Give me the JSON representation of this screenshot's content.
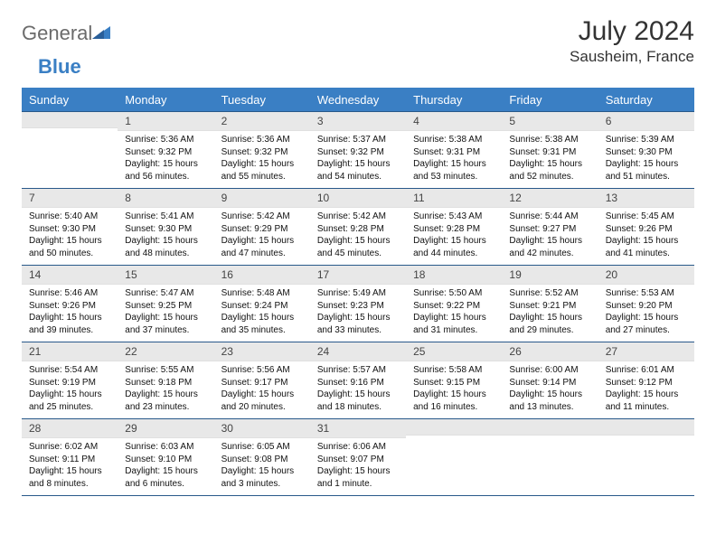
{
  "brand": {
    "word1": "General",
    "word2": "Blue"
  },
  "title": {
    "month": "July 2024",
    "location": "Sausheim, France"
  },
  "colors": {
    "header_bg": "#3a7fc4",
    "header_border": "#29598a",
    "daynum_bg": "#e8e8e8",
    "text": "#111111",
    "title_text": "#333333",
    "logo_gray": "#6b6b6b",
    "logo_blue": "#3a7fc4",
    "page_bg": "#ffffff"
  },
  "typography": {
    "month_fontsize": 30,
    "location_fontsize": 17,
    "dow_fontsize": 13,
    "daynum_fontsize": 12,
    "info_fontsize": 10,
    "logo_fontsize": 22
  },
  "dayNames": [
    "Sunday",
    "Monday",
    "Tuesday",
    "Wednesday",
    "Thursday",
    "Friday",
    "Saturday"
  ],
  "weeks": [
    [
      {
        "n": "",
        "sr": "",
        "ss": "",
        "dl": ""
      },
      {
        "n": "1",
        "sr": "5:36 AM",
        "ss": "9:32 PM",
        "dl": "15 hours and 56 minutes."
      },
      {
        "n": "2",
        "sr": "5:36 AM",
        "ss": "9:32 PM",
        "dl": "15 hours and 55 minutes."
      },
      {
        "n": "3",
        "sr": "5:37 AM",
        "ss": "9:32 PM",
        "dl": "15 hours and 54 minutes."
      },
      {
        "n": "4",
        "sr": "5:38 AM",
        "ss": "9:31 PM",
        "dl": "15 hours and 53 minutes."
      },
      {
        "n": "5",
        "sr": "5:38 AM",
        "ss": "9:31 PM",
        "dl": "15 hours and 52 minutes."
      },
      {
        "n": "6",
        "sr": "5:39 AM",
        "ss": "9:30 PM",
        "dl": "15 hours and 51 minutes."
      }
    ],
    [
      {
        "n": "7",
        "sr": "5:40 AM",
        "ss": "9:30 PM",
        "dl": "15 hours and 50 minutes."
      },
      {
        "n": "8",
        "sr": "5:41 AM",
        "ss": "9:30 PM",
        "dl": "15 hours and 48 minutes."
      },
      {
        "n": "9",
        "sr": "5:42 AM",
        "ss": "9:29 PM",
        "dl": "15 hours and 47 minutes."
      },
      {
        "n": "10",
        "sr": "5:42 AM",
        "ss": "9:28 PM",
        "dl": "15 hours and 45 minutes."
      },
      {
        "n": "11",
        "sr": "5:43 AM",
        "ss": "9:28 PM",
        "dl": "15 hours and 44 minutes."
      },
      {
        "n": "12",
        "sr": "5:44 AM",
        "ss": "9:27 PM",
        "dl": "15 hours and 42 minutes."
      },
      {
        "n": "13",
        "sr": "5:45 AM",
        "ss": "9:26 PM",
        "dl": "15 hours and 41 minutes."
      }
    ],
    [
      {
        "n": "14",
        "sr": "5:46 AM",
        "ss": "9:26 PM",
        "dl": "15 hours and 39 minutes."
      },
      {
        "n": "15",
        "sr": "5:47 AM",
        "ss": "9:25 PM",
        "dl": "15 hours and 37 minutes."
      },
      {
        "n": "16",
        "sr": "5:48 AM",
        "ss": "9:24 PM",
        "dl": "15 hours and 35 minutes."
      },
      {
        "n": "17",
        "sr": "5:49 AM",
        "ss": "9:23 PM",
        "dl": "15 hours and 33 minutes."
      },
      {
        "n": "18",
        "sr": "5:50 AM",
        "ss": "9:22 PM",
        "dl": "15 hours and 31 minutes."
      },
      {
        "n": "19",
        "sr": "5:52 AM",
        "ss": "9:21 PM",
        "dl": "15 hours and 29 minutes."
      },
      {
        "n": "20",
        "sr": "5:53 AM",
        "ss": "9:20 PM",
        "dl": "15 hours and 27 minutes."
      }
    ],
    [
      {
        "n": "21",
        "sr": "5:54 AM",
        "ss": "9:19 PM",
        "dl": "15 hours and 25 minutes."
      },
      {
        "n": "22",
        "sr": "5:55 AM",
        "ss": "9:18 PM",
        "dl": "15 hours and 23 minutes."
      },
      {
        "n": "23",
        "sr": "5:56 AM",
        "ss": "9:17 PM",
        "dl": "15 hours and 20 minutes."
      },
      {
        "n": "24",
        "sr": "5:57 AM",
        "ss": "9:16 PM",
        "dl": "15 hours and 18 minutes."
      },
      {
        "n": "25",
        "sr": "5:58 AM",
        "ss": "9:15 PM",
        "dl": "15 hours and 16 minutes."
      },
      {
        "n": "26",
        "sr": "6:00 AM",
        "ss": "9:14 PM",
        "dl": "15 hours and 13 minutes."
      },
      {
        "n": "27",
        "sr": "6:01 AM",
        "ss": "9:12 PM",
        "dl": "15 hours and 11 minutes."
      }
    ],
    [
      {
        "n": "28",
        "sr": "6:02 AM",
        "ss": "9:11 PM",
        "dl": "15 hours and 8 minutes."
      },
      {
        "n": "29",
        "sr": "6:03 AM",
        "ss": "9:10 PM",
        "dl": "15 hours and 6 minutes."
      },
      {
        "n": "30",
        "sr": "6:05 AM",
        "ss": "9:08 PM",
        "dl": "15 hours and 3 minutes."
      },
      {
        "n": "31",
        "sr": "6:06 AM",
        "ss": "9:07 PM",
        "dl": "15 hours and 1 minute."
      },
      {
        "n": "",
        "sr": "",
        "ss": "",
        "dl": ""
      },
      {
        "n": "",
        "sr": "",
        "ss": "",
        "dl": ""
      },
      {
        "n": "",
        "sr": "",
        "ss": "",
        "dl": ""
      }
    ]
  ],
  "labels": {
    "sunrise": "Sunrise:",
    "sunset": "Sunset:",
    "daylight": "Daylight:"
  }
}
